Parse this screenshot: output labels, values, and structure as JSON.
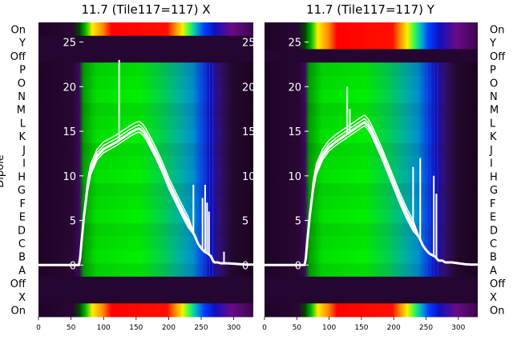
{
  "chart_data": [
    {
      "type": "heatmap",
      "title": "11.7 (Tile117=117) X",
      "ylabel": "Dipole",
      "row_labels_left": [
        "On",
        "Y",
        "Off",
        "P",
        "O",
        "N",
        "M",
        "L",
        "K",
        "J",
        "I",
        "H",
        "G",
        "F",
        "E",
        "D",
        "C",
        "B",
        "A",
        "Off",
        "X",
        "On"
      ],
      "x_ticks": [
        0,
        50,
        100,
        150,
        200,
        250,
        300
      ],
      "xlim": [
        0,
        330
      ],
      "overlay_y_ticks": [
        0,
        5,
        10,
        15,
        20,
        25
      ],
      "overlay_ylim": [
        -5.8,
        27.2
      ],
      "overlay_color": "#ffffff",
      "overlay_series": {
        "x": [
          0,
          62,
          64,
          66,
          70,
          75,
          80,
          90,
          100,
          110,
          120,
          130,
          140,
          150,
          155,
          160,
          165,
          170,
          180,
          190,
          200,
          210,
          220,
          230,
          240,
          245,
          250,
          255,
          260,
          265,
          268,
          270,
          275,
          280,
          290,
          300,
          310,
          320,
          330
        ],
        "y": [
          0,
          0,
          0.8,
          2.5,
          5.5,
          8.5,
          10.5,
          12.2,
          13.0,
          13.4,
          13.8,
          14.3,
          14.8,
          15.2,
          15.3,
          15.0,
          14.5,
          13.8,
          12.4,
          10.8,
          9.0,
          7.5,
          6.0,
          4.6,
          3.3,
          2.4,
          1.9,
          1.5,
          1.3,
          1.0,
          0.5,
          0.3,
          0.3,
          0.2,
          0.2,
          0.15,
          0.1,
          0.05,
          0.05
        ]
      },
      "overlay_spikes": [
        {
          "x": 124,
          "y": 23.0
        },
        {
          "x": 238,
          "y": 9.0
        },
        {
          "x": 252,
          "y": 7.5
        },
        {
          "x": 256,
          "y": 9.0
        },
        {
          "x": 259,
          "y": 7.0
        },
        {
          "x": 262,
          "y": 6.0
        },
        {
          "x": 285,
          "y": 1.5
        }
      ],
      "bands": {
        "top_full_rows": [
          "On"
        ],
        "dark_rows": [
          "Y",
          "Off"
        ],
        "main_rows": [
          "P",
          "O",
          "N",
          "M",
          "L",
          "K",
          "J",
          "I",
          "H",
          "G",
          "F",
          "E",
          "D",
          "C",
          "B",
          "A"
        ],
        "bottom_dark_rows": [
          "Off",
          "X"
        ],
        "bottom_full_rows": [
          "On"
        ]
      },
      "colormap": "nipy_spectral",
      "colors": {
        "background": "#1e0426",
        "purple": "#6a0a86",
        "blue": "#1a2fe0",
        "green": "#00e400",
        "yellow": "#ffee00",
        "red": "#ff0000"
      }
    },
    {
      "type": "heatmap",
      "title": "11.7 (Tile117=117) Y",
      "row_labels_right": [
        "On",
        "Y",
        "Off",
        "P",
        "O",
        "N",
        "M",
        "L",
        "K",
        "J",
        "I",
        "H",
        "G",
        "F",
        "E",
        "D",
        "C",
        "B",
        "A",
        "Off",
        "X",
        "On"
      ],
      "x_ticks": [
        0,
        50,
        100,
        150,
        200,
        250,
        300
      ],
      "xlim": [
        0,
        330
      ],
      "overlay_y_ticks": [
        0,
        5,
        10,
        15,
        20,
        25
      ],
      "overlay_ylim": [
        -5.8,
        27.2
      ],
      "overlay_color": "#ffffff",
      "overlay_series": {
        "x": [
          0,
          62,
          64,
          66,
          70,
          75,
          80,
          90,
          100,
          110,
          120,
          130,
          140,
          150,
          155,
          160,
          165,
          170,
          180,
          190,
          200,
          210,
          220,
          230,
          240,
          245,
          250,
          255,
          260,
          265,
          268,
          270,
          275,
          280,
          290,
          300,
          310,
          320,
          330
        ],
        "y": [
          0,
          0,
          0.8,
          2.5,
          5.5,
          8.5,
          10.5,
          12.2,
          13.2,
          13.8,
          14.3,
          14.8,
          15.3,
          15.8,
          16.0,
          15.6,
          15.0,
          14.2,
          12.6,
          10.8,
          9.0,
          7.2,
          5.6,
          4.2,
          3.0,
          2.2,
          1.7,
          1.3,
          1.1,
          0.9,
          0.6,
          0.5,
          0.5,
          0.3,
          0.3,
          0.2,
          0.1,
          0.05,
          0.05
        ]
      },
      "overlay_spikes": [
        {
          "x": 128,
          "y": 20.0
        },
        {
          "x": 132,
          "y": 17.5
        },
        {
          "x": 230,
          "y": 11.0
        },
        {
          "x": 241,
          "y": 12.0
        },
        {
          "x": 262,
          "y": 10.0
        },
        {
          "x": 266,
          "y": 8.0
        }
      ],
      "bands": {
        "top_full_rows": [
          "On",
          "Y"
        ],
        "dark_rows": [
          "Off"
        ],
        "main_rows": [
          "P",
          "O",
          "N",
          "M",
          "L",
          "K",
          "J",
          "I",
          "H",
          "G",
          "F",
          "E",
          "D",
          "C",
          "B",
          "A"
        ],
        "bottom_dark_rows": [
          "Off",
          "X"
        ],
        "bottom_full_rows": [
          "On"
        ]
      },
      "colormap": "nipy_spectral",
      "colors": {
        "background": "#1e0426",
        "purple": "#6a0a86",
        "blue": "#1a2fe0",
        "green": "#00e400",
        "yellow": "#ffee00",
        "red": "#ff0000"
      }
    }
  ]
}
